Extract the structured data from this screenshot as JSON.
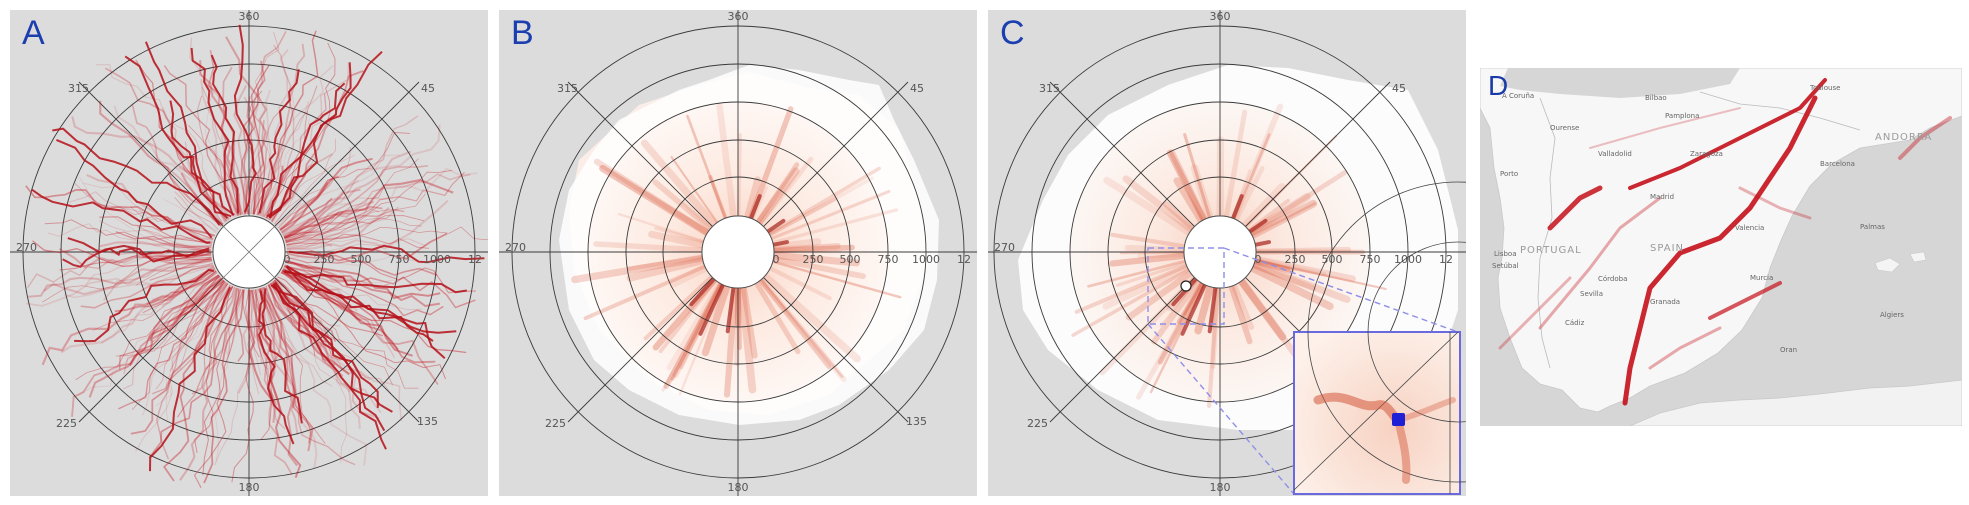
{
  "panels": [
    {
      "id": "A",
      "label": "A"
    },
    {
      "id": "B",
      "label": "B"
    },
    {
      "id": "C",
      "label": "C"
    },
    {
      "id": "D",
      "label": "D"
    }
  ],
  "polar": {
    "angle_labels": [
      "360",
      "45",
      "135",
      "180",
      "225",
      "270",
      "315"
    ],
    "radius_labels": [
      "0",
      "250",
      "500",
      "750",
      "1000",
      "12"
    ]
  },
  "map": {
    "cities": [
      "A Coruña",
      "Ourense",
      "Bilbao",
      "Pamplona",
      "Toulouse",
      "Valladolid",
      "Zaragoza",
      "Porto",
      "Madrid",
      "Barcelona",
      "Valencia",
      "Lisboa",
      "Setúbal",
      "Córdoba",
      "Murcia",
      "Sevilla",
      "Granada",
      "Cádiz",
      "Palmas",
      "Algiers",
      "Oran"
    ],
    "countries": [
      "PORTUGAL",
      "SPAIN",
      "ANDORRA"
    ]
  },
  "colors": {
    "trajectory": "#c4101a",
    "heat_light": "#fbe2d6",
    "heat_dark": "#b0221a",
    "inset_border": "#6a6ae0",
    "label_blue": "#1c3fb0",
    "highlight_point": "#1f1fd6"
  }
}
